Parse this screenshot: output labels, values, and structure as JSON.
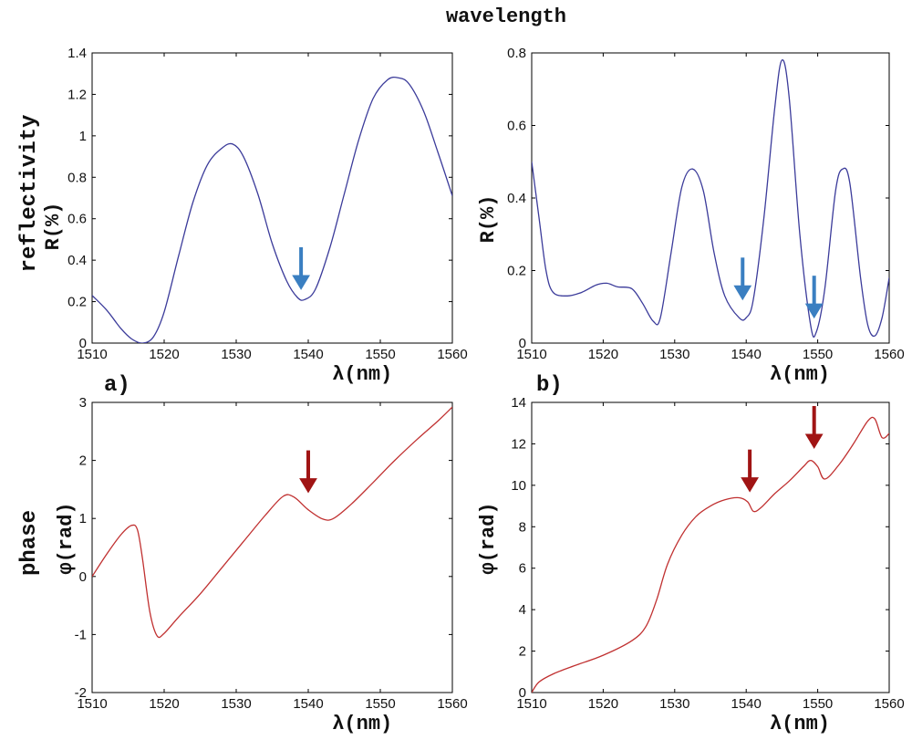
{
  "figure": {
    "top_label": "wavelength",
    "row_labels": [
      "reflectivity",
      "phase"
    ],
    "arrow_colors": {
      "blue": "#3a7fc1",
      "red": "#a01414"
    }
  },
  "chart_data": [
    {
      "type": "line",
      "panel_label": "a)",
      "xlabel": "λ(nm)",
      "ylabel": "R(%)",
      "xlim": [
        1510,
        1560
      ],
      "ylim": [
        0,
        1.4
      ],
      "xticks": [
        "1510",
        "1520",
        "1530",
        "1540",
        "1550",
        "1560"
      ],
      "yticks": [
        "0",
        "0.2",
        "0.4",
        "0.6",
        "0.8",
        "1",
        "1.2",
        "1.4"
      ],
      "line_color": "#3b3b9a",
      "arrow_color": "blue",
      "arrows": [
        {
          "x": 1539,
          "y": 0.26
        }
      ],
      "series": [
        {
          "x": [
            1510,
            1512,
            1514,
            1515.5,
            1517,
            1518.5,
            1520,
            1522,
            1524,
            1526,
            1528,
            1529.5,
            1531,
            1533,
            1535,
            1537,
            1538.5,
            1539.5,
            1541,
            1543,
            1545,
            1547,
            1549,
            1551,
            1552.5,
            1554,
            1556,
            1558,
            1560
          ],
          "y": [
            0.23,
            0.16,
            0.07,
            0.02,
            0.0,
            0.03,
            0.15,
            0.42,
            0.68,
            0.86,
            0.94,
            0.96,
            0.9,
            0.72,
            0.48,
            0.3,
            0.22,
            0.21,
            0.26,
            0.46,
            0.72,
            0.98,
            1.18,
            1.27,
            1.28,
            1.25,
            1.12,
            0.92,
            0.71
          ]
        }
      ]
    },
    {
      "type": "line",
      "panel_label": "b)",
      "xlabel": "λ(nm)",
      "ylabel": "R(%)",
      "xlim": [
        1510,
        1560
      ],
      "ylim": [
        0,
        0.8
      ],
      "xticks": [
        "1510",
        "1520",
        "1530",
        "1540",
        "1550",
        "1560"
      ],
      "yticks": [
        "0",
        "0.2",
        "0.4",
        "0.6",
        "0.8"
      ],
      "line_color": "#3b3b9a",
      "arrow_color": "blue",
      "arrows": [
        {
          "x": 1539.5,
          "y": 0.12
        },
        {
          "x": 1549.5,
          "y": 0.07
        }
      ],
      "series": [
        {
          "x": [
            1510,
            1511,
            1512,
            1513,
            1515,
            1517,
            1519,
            1520.5,
            1522,
            1524,
            1525.5,
            1527,
            1528,
            1529.5,
            1531,
            1532.5,
            1534,
            1535.5,
            1537,
            1539,
            1540,
            1541,
            1542.5,
            1544,
            1545,
            1546,
            1547.5,
            1549,
            1549.8,
            1551,
            1552.5,
            1553.5,
            1554.5,
            1556,
            1557,
            1558,
            1559,
            1560
          ],
          "y": [
            0.5,
            0.35,
            0.2,
            0.14,
            0.13,
            0.14,
            0.16,
            0.165,
            0.155,
            0.15,
            0.11,
            0.06,
            0.07,
            0.25,
            0.43,
            0.48,
            0.42,
            0.25,
            0.13,
            0.07,
            0.07,
            0.12,
            0.35,
            0.65,
            0.78,
            0.68,
            0.3,
            0.05,
            0.03,
            0.15,
            0.42,
            0.48,
            0.44,
            0.18,
            0.05,
            0.02,
            0.07,
            0.18
          ]
        }
      ]
    },
    {
      "type": "line",
      "xlabel": "λ(nm)",
      "ylabel": "φ(rad)",
      "xlim": [
        1510,
        1560
      ],
      "ylim": [
        -2,
        3
      ],
      "xticks": [
        "1510",
        "1520",
        "1530",
        "1540",
        "1550",
        "1560"
      ],
      "yticks": [
        "-2",
        "-1",
        "0",
        "1",
        "2",
        "3"
      ],
      "line_color": "#c03030",
      "arrow_color": "red",
      "arrows": [
        {
          "x": 1540,
          "y": 1.45
        }
      ],
      "series": [
        {
          "x": [
            1510,
            1512,
            1514,
            1515.5,
            1516.3,
            1517,
            1518,
            1519,
            1520,
            1522,
            1525,
            1528,
            1531,
            1534,
            1536.5,
            1538,
            1540,
            1542,
            1543.5,
            1546,
            1549,
            1552,
            1555,
            1558,
            1560
          ],
          "y": [
            0.0,
            0.38,
            0.72,
            0.88,
            0.8,
            0.3,
            -0.6,
            -1.02,
            -0.98,
            -0.7,
            -0.3,
            0.15,
            0.6,
            1.05,
            1.38,
            1.37,
            1.15,
            0.99,
            1.0,
            1.25,
            1.62,
            2.0,
            2.35,
            2.68,
            2.92
          ]
        }
      ]
    },
    {
      "type": "line",
      "xlabel": "λ(nm)",
      "ylabel": "φ(rad)",
      "xlim": [
        1510,
        1560
      ],
      "ylim": [
        0,
        14
      ],
      "xticks": [
        "1510",
        "1520",
        "1530",
        "1540",
        "1550",
        "1560"
      ],
      "yticks": [
        "0",
        "2",
        "4",
        "6",
        "8",
        "10",
        "12",
        "14"
      ],
      "line_color": "#c03030",
      "arrow_color": "red",
      "arrows": [
        {
          "x": 1540.5,
          "y": 9.7
        },
        {
          "x": 1549.5,
          "y": 11.8
        }
      ],
      "series": [
        {
          "x": [
            1510,
            1511,
            1513,
            1516,
            1520,
            1524,
            1526,
            1527.5,
            1529,
            1531,
            1533,
            1535,
            1537,
            1539,
            1540.2,
            1541,
            1542,
            1544,
            1546,
            1548,
            1549,
            1550,
            1551,
            1553,
            1555,
            1557,
            1558,
            1559,
            1560
          ],
          "y": [
            0.0,
            0.5,
            0.9,
            1.3,
            1.8,
            2.5,
            3.2,
            4.5,
            6.2,
            7.6,
            8.5,
            9.0,
            9.3,
            9.4,
            9.2,
            8.75,
            8.9,
            9.6,
            10.2,
            10.9,
            11.2,
            10.9,
            10.3,
            11.0,
            12.0,
            13.1,
            13.2,
            12.3,
            12.5
          ]
        }
      ]
    }
  ]
}
